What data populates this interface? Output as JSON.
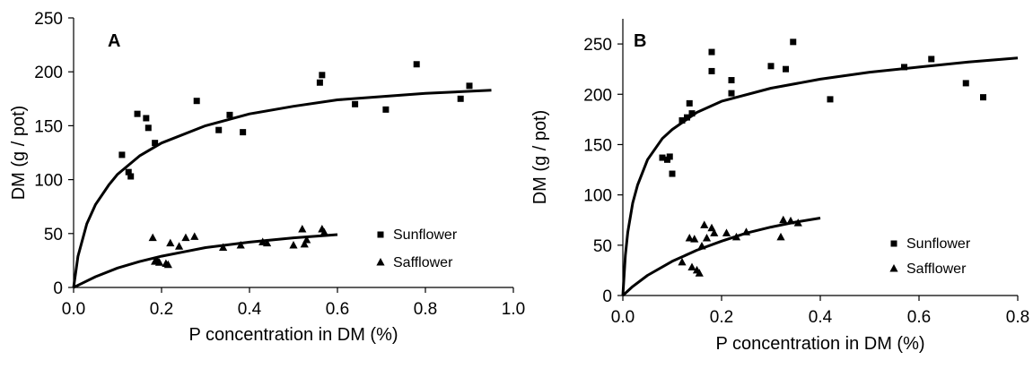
{
  "chart_data": [
    {
      "type": "scatter",
      "panel_label": "A",
      "xlabel": "P concentration in DM (%)",
      "ylabel": "DM (g / pot)",
      "xlim": [
        0.0,
        1.0
      ],
      "ylim": [
        0,
        250
      ],
      "x_ticks": [
        "0.0",
        "0.2",
        "0.4",
        "0.6",
        "0.8",
        "1.0"
      ],
      "y_ticks": [
        "0",
        "50",
        "100",
        "150",
        "200",
        "250"
      ],
      "grid": false,
      "legend_position": "right",
      "series": [
        {
          "name": "Sunflower",
          "marker": "square",
          "points": [
            [
              0.11,
              123
            ],
            [
              0.125,
              107
            ],
            [
              0.13,
              103
            ],
            [
              0.145,
              161
            ],
            [
              0.165,
              157
            ],
            [
              0.17,
              148
            ],
            [
              0.185,
              134
            ],
            [
              0.28,
              173
            ],
            [
              0.33,
              146
            ],
            [
              0.355,
              160
            ],
            [
              0.385,
              144
            ],
            [
              0.56,
              190
            ],
            [
              0.565,
              197
            ],
            [
              0.64,
              170
            ],
            [
              0.71,
              165
            ],
            [
              0.78,
              207
            ],
            [
              0.88,
              175
            ],
            [
              0.9,
              187
            ]
          ],
          "fit": [
            [
              0.0,
              0
            ],
            [
              0.01,
              29
            ],
            [
              0.03,
              59
            ],
            [
              0.05,
              77
            ],
            [
              0.08,
              95
            ],
            [
              0.1,
              105
            ],
            [
              0.15,
              122
            ],
            [
              0.2,
              134
            ],
            [
              0.3,
              150
            ],
            [
              0.4,
              161
            ],
            [
              0.5,
              168
            ],
            [
              0.6,
              174
            ],
            [
              0.7,
              177
            ],
            [
              0.8,
              180
            ],
            [
              0.95,
              183
            ]
          ]
        },
        {
          "name": "Safflower",
          "marker": "triangle",
          "points": [
            [
              0.18,
              46
            ],
            [
              0.185,
              24
            ],
            [
              0.19,
              25
            ],
            [
              0.195,
              23
            ],
            [
              0.21,
              22
            ],
            [
              0.215,
              21
            ],
            [
              0.22,
              41
            ],
            [
              0.24,
              38
            ],
            [
              0.255,
              46
            ],
            [
              0.275,
              47
            ],
            [
              0.34,
              37
            ],
            [
              0.38,
              39
            ],
            [
              0.43,
              42
            ],
            [
              0.44,
              41
            ],
            [
              0.5,
              39
            ],
            [
              0.52,
              54
            ],
            [
              0.525,
              40
            ],
            [
              0.53,
              44
            ],
            [
              0.565,
              54
            ],
            [
              0.57,
              51
            ]
          ],
          "fit": [
            [
              0.0,
              0
            ],
            [
              0.02,
              4
            ],
            [
              0.05,
              10
            ],
            [
              0.1,
              18
            ],
            [
              0.15,
              24
            ],
            [
              0.2,
              29
            ],
            [
              0.25,
              33
            ],
            [
              0.3,
              37
            ],
            [
              0.4,
              42
            ],
            [
              0.5,
              46
            ],
            [
              0.6,
              49
            ]
          ]
        }
      ]
    },
    {
      "type": "scatter",
      "panel_label": "B",
      "xlabel": "P concentration in DM (%)",
      "ylabel": "DM (g / pot)",
      "xlim": [
        0.0,
        0.8
      ],
      "ylim": [
        0,
        275
      ],
      "x_ticks": [
        "0.0",
        "0.2",
        "0.4",
        "0.6",
        "0.8"
      ],
      "y_ticks": [
        "0",
        "50",
        "100",
        "150",
        "200",
        "250"
      ],
      "grid": false,
      "legend_position": "bottom-right",
      "series": [
        {
          "name": "Sunflower",
          "marker": "square",
          "points": [
            [
              0.08,
              137
            ],
            [
              0.09,
              135
            ],
            [
              0.095,
              138
            ],
            [
              0.1,
              121
            ],
            [
              0.12,
              174
            ],
            [
              0.13,
              177
            ],
            [
              0.135,
              191
            ],
            [
              0.14,
              181
            ],
            [
              0.18,
              242
            ],
            [
              0.18,
              223
            ],
            [
              0.22,
              214
            ],
            [
              0.22,
              201
            ],
            [
              0.3,
              228
            ],
            [
              0.33,
              225
            ],
            [
              0.345,
              252
            ],
            [
              0.42,
              195
            ],
            [
              0.57,
              227
            ],
            [
              0.625,
              235
            ],
            [
              0.695,
              211
            ],
            [
              0.73,
              197
            ]
          ],
          "fit": [
            [
              0.0,
              0
            ],
            [
              0.005,
              40
            ],
            [
              0.01,
              63
            ],
            [
              0.02,
              92
            ],
            [
              0.03,
              110
            ],
            [
              0.05,
              135
            ],
            [
              0.08,
              156
            ],
            [
              0.1,
              165
            ],
            [
              0.15,
              182
            ],
            [
              0.2,
              193
            ],
            [
              0.3,
              206
            ],
            [
              0.4,
              215
            ],
            [
              0.5,
              222
            ],
            [
              0.6,
              227
            ],
            [
              0.7,
              232
            ],
            [
              0.8,
              236
            ]
          ]
        },
        {
          "name": "Safflower",
          "marker": "triangle",
          "points": [
            [
              0.12,
              33
            ],
            [
              0.135,
              57
            ],
            [
              0.14,
              28
            ],
            [
              0.145,
              56
            ],
            [
              0.15,
              25
            ],
            [
              0.155,
              22
            ],
            [
              0.16,
              49
            ],
            [
              0.165,
              70
            ],
            [
              0.17,
              57
            ],
            [
              0.18,
              67
            ],
            [
              0.185,
              62
            ],
            [
              0.21,
              62
            ],
            [
              0.23,
              58
            ],
            [
              0.25,
              63
            ],
            [
              0.32,
              58
            ],
            [
              0.325,
              75
            ],
            [
              0.34,
              74
            ],
            [
              0.355,
              72
            ]
          ],
          "fit": [
            [
              0.0,
              0
            ],
            [
              0.02,
              9
            ],
            [
              0.05,
              20
            ],
            [
              0.1,
              34
            ],
            [
              0.15,
              45
            ],
            [
              0.2,
              54
            ],
            [
              0.25,
              62
            ],
            [
              0.3,
              68
            ],
            [
              0.35,
              73
            ],
            [
              0.4,
              77
            ]
          ]
        }
      ]
    }
  ]
}
